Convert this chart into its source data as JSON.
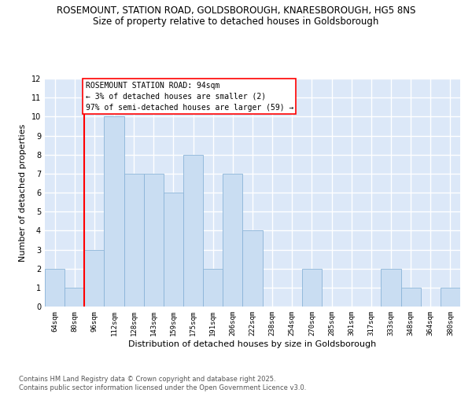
{
  "title_line1": "ROSEMOUNT, STATION ROAD, GOLDSBOROUGH, KNARESBOROUGH, HG5 8NS",
  "title_line2": "Size of property relative to detached houses in Goldsborough",
  "xlabel": "Distribution of detached houses by size in Goldsborough",
  "ylabel": "Number of detached properties",
  "categories": [
    "64sqm",
    "80sqm",
    "96sqm",
    "112sqm",
    "128sqm",
    "143sqm",
    "159sqm",
    "175sqm",
    "191sqm",
    "206sqm",
    "222sqm",
    "238sqm",
    "254sqm",
    "270sqm",
    "285sqm",
    "301sqm",
    "317sqm",
    "333sqm",
    "348sqm",
    "364sqm",
    "380sqm"
  ],
  "values": [
    2,
    1,
    3,
    10,
    7,
    7,
    6,
    8,
    2,
    7,
    4,
    0,
    0,
    2,
    0,
    0,
    0,
    2,
    1,
    0,
    1
  ],
  "bar_color": "#c9ddf2",
  "bar_edge_color": "#8ab4d8",
  "red_line_index": 2,
  "annotation_text": "ROSEMOUNT STATION ROAD: 94sqm\n← 3% of detached houses are smaller (2)\n97% of semi-detached houses are larger (59) →",
  "annotation_box_color": "white",
  "annotation_box_edge_color": "red",
  "ylim": [
    0,
    12
  ],
  "yticks": [
    0,
    1,
    2,
    3,
    4,
    5,
    6,
    7,
    8,
    9,
    10,
    11,
    12
  ],
  "background_color": "#dce8f8",
  "grid_color": "white",
  "footer_text": "Contains HM Land Registry data © Crown copyright and database right 2025.\nContains public sector information licensed under the Open Government Licence v3.0.",
  "title_fontsize": 8.5,
  "subtitle_fontsize": 8.5,
  "tick_fontsize": 6.5,
  "label_fontsize": 8,
  "annotation_fontsize": 7,
  "footer_fontsize": 6
}
